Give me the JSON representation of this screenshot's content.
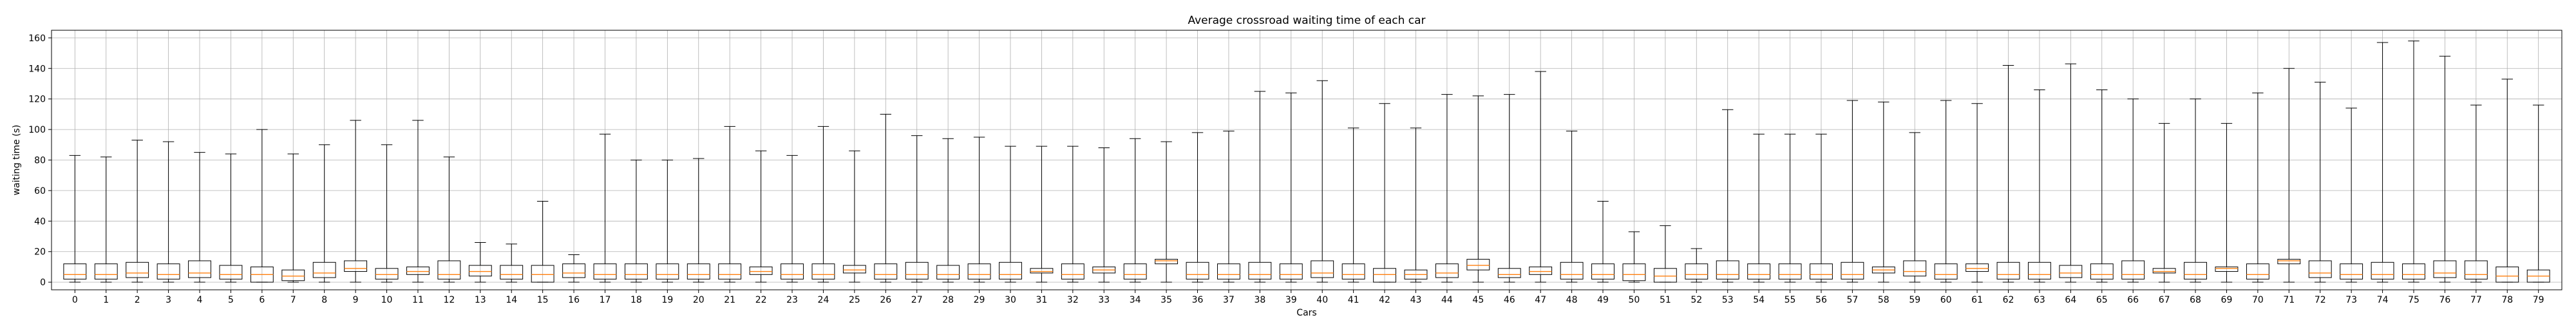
{
  "chart_data": {
    "type": "boxplot",
    "title": "Average crossroad waiting time of each car",
    "xlabel": "Cars",
    "ylabel": "waiting time (s)",
    "ylim": [
      -5,
      165
    ],
    "yticks": [
      0,
      20,
      40,
      60,
      80,
      100,
      120,
      140,
      160
    ],
    "grid": true,
    "colors": {
      "box": "#000000",
      "median": "#ff7f0e",
      "grid": "#b0b0b0"
    },
    "categories": [
      "0",
      "1",
      "2",
      "3",
      "4",
      "5",
      "6",
      "7",
      "8",
      "9",
      "10",
      "11",
      "12",
      "13",
      "14",
      "15",
      "16",
      "17",
      "18",
      "19",
      "20",
      "21",
      "22",
      "23",
      "24",
      "25",
      "26",
      "27",
      "28",
      "29",
      "30",
      "31",
      "32",
      "33",
      "34",
      "35",
      "36",
      "37",
      "38",
      "39",
      "40",
      "41",
      "42",
      "43",
      "44",
      "45",
      "46",
      "47",
      "48",
      "49",
      "50",
      "51",
      "52",
      "53",
      "54",
      "55",
      "56",
      "57",
      "58",
      "59",
      "60",
      "61",
      "62",
      "63",
      "64",
      "65",
      "66",
      "67",
      "68",
      "69",
      "70",
      "71",
      "72",
      "73",
      "74",
      "75",
      "76",
      "77",
      "78",
      "79"
    ],
    "boxes": [
      {
        "min": 0,
        "q1": 2,
        "median": 5,
        "q3": 12,
        "max": 83
      },
      {
        "min": 0,
        "q1": 2,
        "median": 5,
        "q3": 12,
        "max": 82
      },
      {
        "min": 0,
        "q1": 3,
        "median": 6,
        "q3": 13,
        "max": 93
      },
      {
        "min": 0,
        "q1": 2,
        "median": 5,
        "q3": 12,
        "max": 92
      },
      {
        "min": 0,
        "q1": 3,
        "median": 6,
        "q3": 14,
        "max": 85
      },
      {
        "min": 0,
        "q1": 2,
        "median": 5,
        "q3": 11,
        "max": 84
      },
      {
        "min": 0,
        "q1": 0,
        "median": 5,
        "q3": 10,
        "max": 100
      },
      {
        "min": 0,
        "q1": 1,
        "median": 4,
        "q3": 8,
        "max": 84
      },
      {
        "min": 0,
        "q1": 3,
        "median": 6,
        "q3": 13,
        "max": 90
      },
      {
        "min": 0,
        "q1": 7,
        "median": 9,
        "q3": 14,
        "max": 106
      },
      {
        "min": 0,
        "q1": 2,
        "median": 5,
        "q3": 9,
        "max": 90
      },
      {
        "min": 0,
        "q1": 5,
        "median": 7,
        "q3": 10,
        "max": 106
      },
      {
        "min": 0,
        "q1": 2,
        "median": 5,
        "q3": 14,
        "max": 82
      },
      {
        "min": 0,
        "q1": 4,
        "median": 7,
        "q3": 11,
        "max": 26
      },
      {
        "min": 0,
        "q1": 2,
        "median": 5,
        "q3": 11,
        "max": 25
      },
      {
        "min": 0,
        "q1": 0,
        "median": 5,
        "q3": 11,
        "max": 53
      },
      {
        "min": 0,
        "q1": 3,
        "median": 6,
        "q3": 12,
        "max": 18
      },
      {
        "min": 0,
        "q1": 2,
        "median": 5,
        "q3": 12,
        "max": 97
      },
      {
        "min": 0,
        "q1": 2,
        "median": 5,
        "q3": 12,
        "max": 80
      },
      {
        "min": 0,
        "q1": 2,
        "median": 5,
        "q3": 12,
        "max": 80
      },
      {
        "min": 0,
        "q1": 2,
        "median": 5,
        "q3": 12,
        "max": 81
      },
      {
        "min": 0,
        "q1": 2,
        "median": 5,
        "q3": 12,
        "max": 102
      },
      {
        "min": 0,
        "q1": 5,
        "median": 7,
        "q3": 10,
        "max": 86
      },
      {
        "min": 0,
        "q1": 2,
        "median": 5,
        "q3": 12,
        "max": 83
      },
      {
        "min": 0,
        "q1": 2,
        "median": 5,
        "q3": 12,
        "max": 102
      },
      {
        "min": 0,
        "q1": 6,
        "median": 8,
        "q3": 11,
        "max": 86
      },
      {
        "min": 0,
        "q1": 2,
        "median": 5,
        "q3": 12,
        "max": 110
      },
      {
        "min": 0,
        "q1": 2,
        "median": 5,
        "q3": 13,
        "max": 96
      },
      {
        "min": 0,
        "q1": 2,
        "median": 5,
        "q3": 11,
        "max": 94
      },
      {
        "min": 0,
        "q1": 2,
        "median": 5,
        "q3": 12,
        "max": 95
      },
      {
        "min": 0,
        "q1": 2,
        "median": 5,
        "q3": 13,
        "max": 89
      },
      {
        "min": 0,
        "q1": 6,
        "median": 7,
        "q3": 9,
        "max": 89
      },
      {
        "min": 0,
        "q1": 2,
        "median": 5,
        "q3": 12,
        "max": 89
      },
      {
        "min": 0,
        "q1": 6,
        "median": 8,
        "q3": 10,
        "max": 88
      },
      {
        "min": 0,
        "q1": 2,
        "median": 5,
        "q3": 12,
        "max": 94
      },
      {
        "min": 0,
        "q1": 12,
        "median": 14,
        "q3": 15,
        "max": 92
      },
      {
        "min": 0,
        "q1": 2,
        "median": 5,
        "q3": 13,
        "max": 98
      },
      {
        "min": 0,
        "q1": 2,
        "median": 5,
        "q3": 12,
        "max": 99
      },
      {
        "min": 0,
        "q1": 2,
        "median": 5,
        "q3": 13,
        "max": 125
      },
      {
        "min": 0,
        "q1": 2,
        "median": 5,
        "q3": 12,
        "max": 124
      },
      {
        "min": 0,
        "q1": 3,
        "median": 6,
        "q3": 14,
        "max": 132
      },
      {
        "min": 0,
        "q1": 2,
        "median": 5,
        "q3": 12,
        "max": 101
      },
      {
        "min": 0,
        "q1": 0,
        "median": 5,
        "q3": 9,
        "max": 117
      },
      {
        "min": 0,
        "q1": 2,
        "median": 5,
        "q3": 8,
        "max": 101
      },
      {
        "min": 0,
        "q1": 3,
        "median": 6,
        "q3": 12,
        "max": 123
      },
      {
        "min": 0,
        "q1": 8,
        "median": 11,
        "q3": 15,
        "max": 122
      },
      {
        "min": 0,
        "q1": 3,
        "median": 5,
        "q3": 9,
        "max": 123
      },
      {
        "min": 0,
        "q1": 5,
        "median": 7,
        "q3": 10,
        "max": 138
      },
      {
        "min": 0,
        "q1": 2,
        "median": 5,
        "q3": 13,
        "max": 99
      },
      {
        "min": 0,
        "q1": 2,
        "median": 5,
        "q3": 12,
        "max": 53
      },
      {
        "min": 0,
        "q1": 1,
        "median": 5,
        "q3": 12,
        "max": 33
      },
      {
        "min": 0,
        "q1": 0,
        "median": 4,
        "q3": 9,
        "max": 37
      },
      {
        "min": 0,
        "q1": 2,
        "median": 5,
        "q3": 12,
        "max": 22
      },
      {
        "min": 0,
        "q1": 2,
        "median": 5,
        "q3": 14,
        "max": 113
      },
      {
        "min": 0,
        "q1": 2,
        "median": 5,
        "q3": 12,
        "max": 97
      },
      {
        "min": 0,
        "q1": 2,
        "median": 5,
        "q3": 12,
        "max": 97
      },
      {
        "min": 0,
        "q1": 2,
        "median": 5,
        "q3": 12,
        "max": 97
      },
      {
        "min": 0,
        "q1": 2,
        "median": 5,
        "q3": 13,
        "max": 119
      },
      {
        "min": 0,
        "q1": 6,
        "median": 8,
        "q3": 10,
        "max": 118
      },
      {
        "min": 0,
        "q1": 4,
        "median": 7,
        "q3": 14,
        "max": 98
      },
      {
        "min": 0,
        "q1": 2,
        "median": 5,
        "q3": 12,
        "max": 119
      },
      {
        "min": 0,
        "q1": 7,
        "median": 9,
        "q3": 12,
        "max": 117
      },
      {
        "min": 0,
        "q1": 2,
        "median": 5,
        "q3": 13,
        "max": 142
      },
      {
        "min": 0,
        "q1": 2,
        "median": 5,
        "q3": 13,
        "max": 126
      },
      {
        "min": 0,
        "q1": 3,
        "median": 6,
        "q3": 11,
        "max": 143
      },
      {
        "min": 0,
        "q1": 2,
        "median": 5,
        "q3": 12,
        "max": 126
      },
      {
        "min": 0,
        "q1": 2,
        "median": 5,
        "q3": 14,
        "max": 120
      },
      {
        "min": 0,
        "q1": 6,
        "median": 7,
        "q3": 9,
        "max": 104
      },
      {
        "min": 0,
        "q1": 2,
        "median": 5,
        "q3": 13,
        "max": 120
      },
      {
        "min": 0,
        "q1": 7,
        "median": 9,
        "q3": 10,
        "max": 104
      },
      {
        "min": 0,
        "q1": 2,
        "median": 5,
        "q3": 12,
        "max": 124
      },
      {
        "min": 0,
        "q1": 12,
        "median": 14,
        "q3": 15,
        "max": 140
      },
      {
        "min": 0,
        "q1": 3,
        "median": 6,
        "q3": 14,
        "max": 131
      },
      {
        "min": 0,
        "q1": 2,
        "median": 5,
        "q3": 12,
        "max": 114
      },
      {
        "min": 0,
        "q1": 2,
        "median": 5,
        "q3": 13,
        "max": 157
      },
      {
        "min": 0,
        "q1": 2,
        "median": 5,
        "q3": 12,
        "max": 158
      },
      {
        "min": 0,
        "q1": 3,
        "median": 6,
        "q3": 14,
        "max": 148
      },
      {
        "min": 0,
        "q1": 2,
        "median": 5,
        "q3": 14,
        "max": 116
      },
      {
        "min": 0,
        "q1": 0,
        "median": 4,
        "q3": 10,
        "max": 133
      },
      {
        "min": 0,
        "q1": 0,
        "median": 4,
        "q3": 8,
        "max": 116
      }
    ]
  }
}
